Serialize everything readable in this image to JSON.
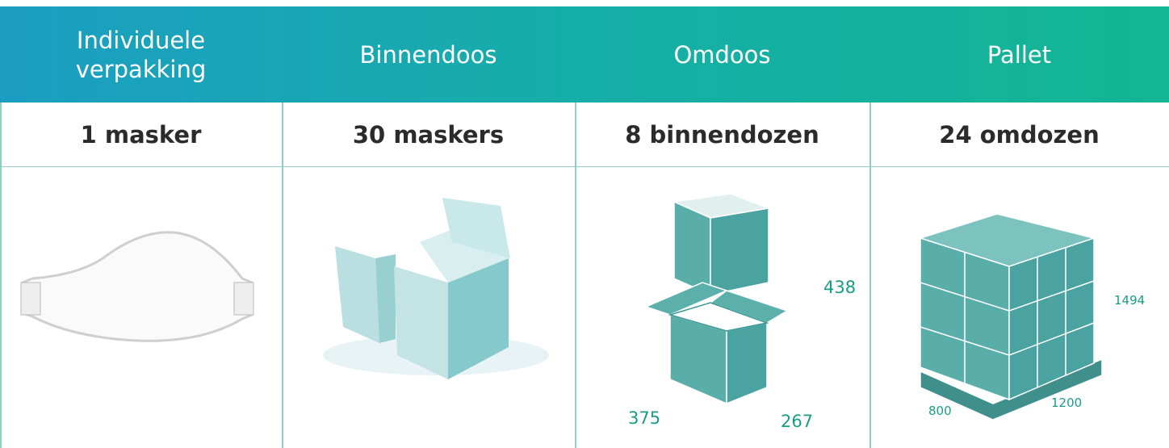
{
  "table": {
    "header": [
      "Individuele verpakking",
      "Binnendoos",
      "Omdoos",
      "Pallet"
    ],
    "rows": [
      [
        "1 masker",
        "30 maskers",
        "8 binnendozen",
        "24 omdozen"
      ]
    ],
    "omdoos_dimensions": {
      "height": 438,
      "width": 375,
      "depth": 267
    },
    "pallet_dimensions": {
      "height": 1494,
      "width": 800,
      "depth": 1200
    }
  }
}
